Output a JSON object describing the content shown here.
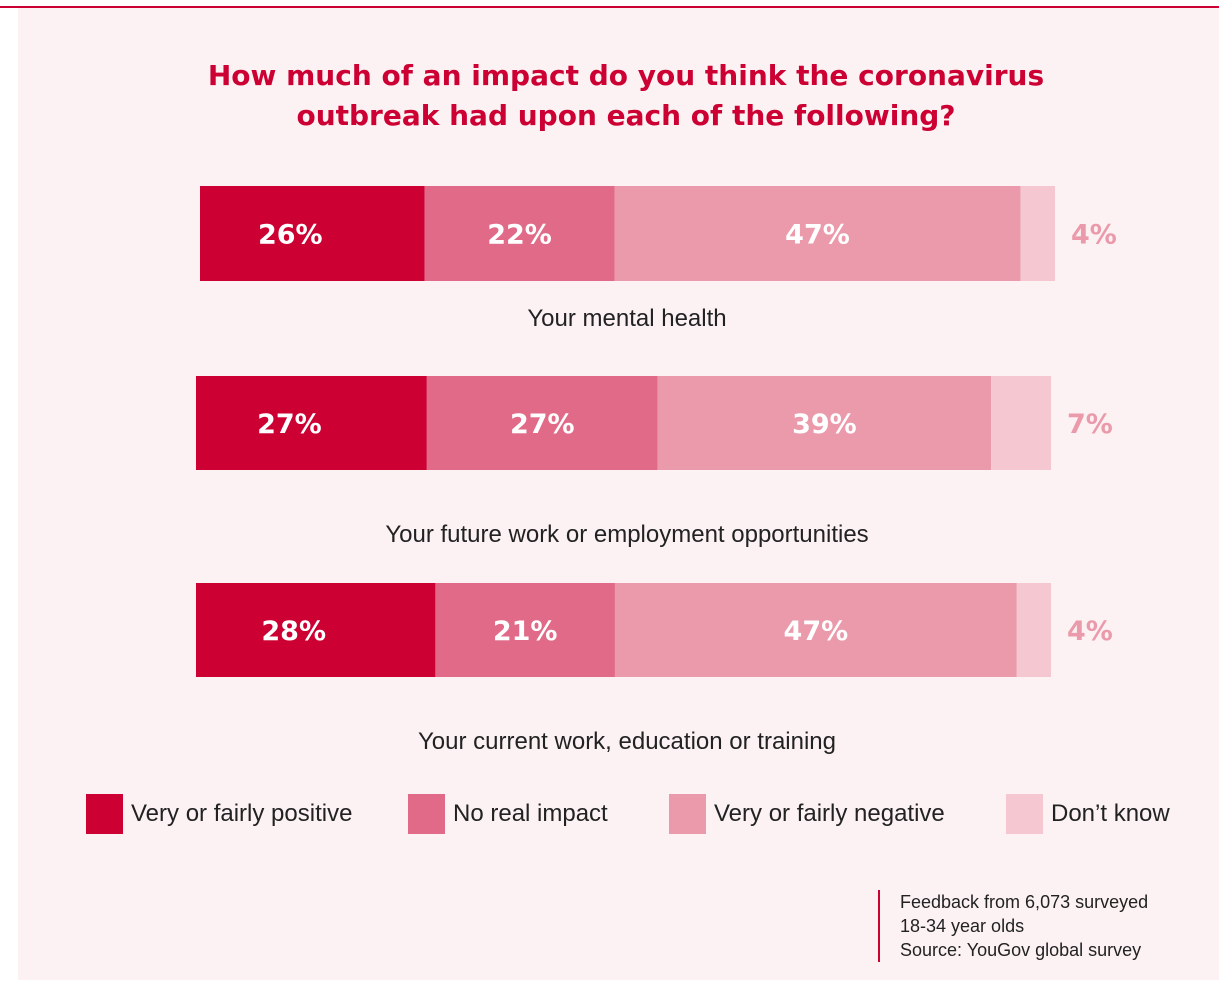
{
  "title_lines": [
    "How much of an impact do you think the coronavirus",
    "outbreak had upon each of the following?"
  ],
  "colors": {
    "positive": "#cc0033",
    "no_impact": "#e06a88",
    "negative": "#ea9aaa",
    "dont_know": "#f5c8d1",
    "accent": "#cc0033",
    "background": "#fcf2f3"
  },
  "chart_data": {
    "type": "bar",
    "orientation": "horizontal",
    "stacked": true,
    "categories": [
      "Your mental health",
      "Your future work or employment opportunities",
      "Your current work, education or training"
    ],
    "series": [
      {
        "name": "Very or fairly positive",
        "values": [
          26,
          27,
          28
        ]
      },
      {
        "name": "No real impact",
        "values": [
          22,
          27,
          21
        ]
      },
      {
        "name": "Very or fairly negative",
        "values": [
          47,
          39,
          47
        ]
      },
      {
        "name": "Don’t know",
        "values": [
          4,
          7,
          4
        ]
      }
    ],
    "data_labels": [
      [
        "26%",
        "22%",
        "47%",
        "4%"
      ],
      [
        "27%",
        "27%",
        "39%",
        "7%"
      ],
      [
        "28%",
        "21%",
        "47%",
        "4%"
      ]
    ],
    "unit": "%",
    "legend_position": "bottom",
    "grid": false
  },
  "footnote": {
    "line1": "Feedback from 6,073 surveyed",
    "line2": "18-34 year olds",
    "line3": "Source: YouGov global survey"
  }
}
